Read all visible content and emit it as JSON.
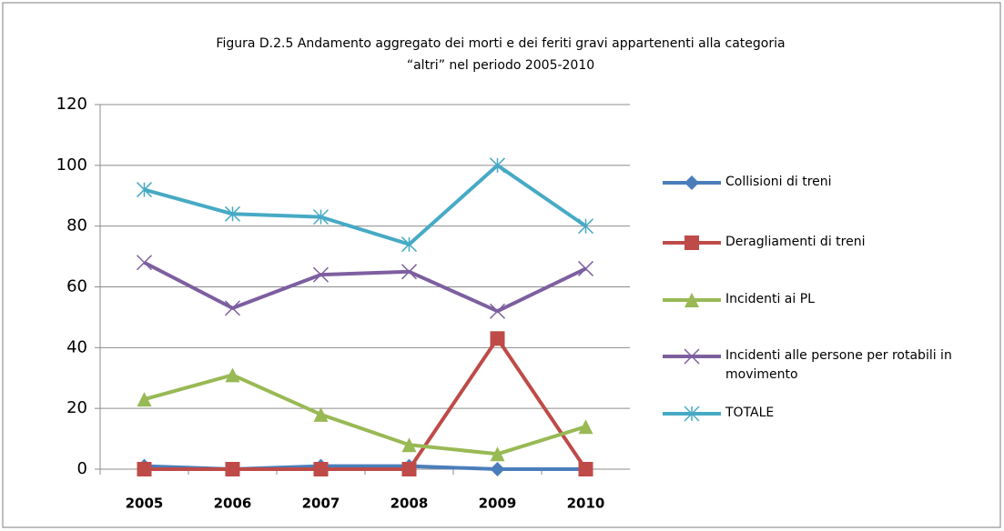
{
  "chart_data": {
    "type": "line",
    "title": [
      "Figura D.2.5 Andamento aggregato dei morti e dei feriti  gravi appartenenti alla categoria",
      "“altri” nel periodo 2005-2010"
    ],
    "categories": [
      "2005",
      "2006",
      "2007",
      "2008",
      "2009",
      "2010"
    ],
    "series": [
      {
        "name": "Collisioni di treni",
        "color": "#4a7ebb",
        "marker": "diamond",
        "values": [
          1,
          0,
          1,
          1,
          0,
          0
        ]
      },
      {
        "name": "Deragliamenti di treni",
        "color": "#be4b48",
        "marker": "square",
        "values": [
          0,
          0,
          0,
          0,
          43,
          0
        ]
      },
      {
        "name": "Incidenti ai PL",
        "color": "#98b954",
        "marker": "triangle",
        "values": [
          23,
          31,
          18,
          8,
          5,
          14
        ]
      },
      {
        "name": "Incidenti alle persone per rotabili in movimento",
        "color": "#7d5fa0",
        "marker": "x",
        "values": [
          68,
          53,
          64,
          65,
          52,
          66
        ]
      },
      {
        "name": "TOTALE",
        "color": "#46aac5",
        "marker": "star",
        "values": [
          92,
          84,
          83,
          74,
          100,
          80
        ]
      }
    ],
    "ylim": [
      0,
      120
    ],
    "yticks": [
      0,
      20,
      40,
      60,
      80,
      100,
      120
    ],
    "grid": true,
    "legend": "right"
  }
}
